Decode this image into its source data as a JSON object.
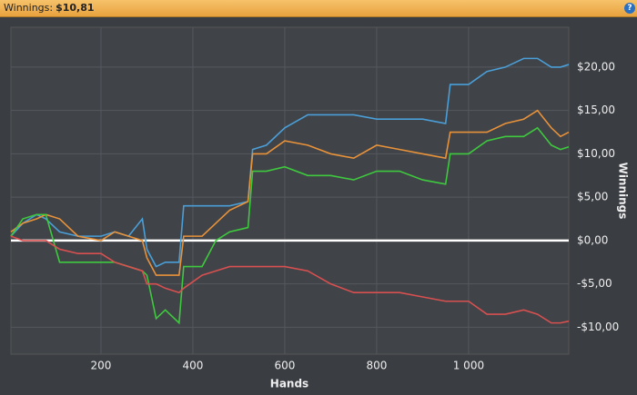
{
  "header": {
    "label": "Winnings:",
    "value": "$10,81",
    "help": "?"
  },
  "chart_data": {
    "type": "line",
    "x_label": "Hands",
    "y_label": "Winnings",
    "x": [
      4,
      30,
      60,
      80,
      110,
      150,
      200,
      230,
      260,
      290,
      300,
      320,
      340,
      370,
      380,
      420,
      450,
      480,
      520,
      530,
      560,
      600,
      650,
      700,
      750,
      800,
      850,
      900,
      950,
      960,
      1000,
      1040,
      1080,
      1120,
      1150,
      1180,
      1200,
      1218
    ],
    "series": [
      {
        "color": "#4a9fd8",
        "values": [
          0.5,
          2,
          3,
          2.5,
          1,
          0.5,
          0.5,
          1,
          0.5,
          2.5,
          -1,
          -3,
          -2.5,
          -2.5,
          4,
          4,
          4,
          4,
          4.5,
          10.5,
          11,
          13,
          14.5,
          14.5,
          14.5,
          14,
          14,
          14,
          13.5,
          18,
          18,
          19.5,
          20,
          21,
          21,
          20,
          20,
          20.3
        ]
      },
      {
        "color": "#e8923a",
        "values": [
          1,
          2,
          2.5,
          3,
          2.5,
          0.5,
          0,
          1,
          0.5,
          0,
          -2,
          -4,
          -4,
          -4,
          0.5,
          0.5,
          2,
          3.5,
          4.5,
          10,
          10,
          11.5,
          11,
          10,
          9.5,
          11,
          10.5,
          10,
          9.5,
          12.5,
          12.5,
          12.5,
          13.5,
          14,
          15,
          13,
          12,
          12.5
        ]
      },
      {
        "color": "#3ec93e",
        "values": [
          0.5,
          2.5,
          3,
          3,
          -2.5,
          -2.5,
          -2.5,
          -2.5,
          -3,
          -3.5,
          -4,
          -9,
          -8,
          -9.5,
          -3,
          -3,
          0,
          1,
          1.5,
          8,
          8,
          8.5,
          7.5,
          7.5,
          7,
          8,
          8,
          7,
          6.5,
          10,
          10,
          11.5,
          12,
          12,
          13,
          11,
          10.5,
          10.8
        ]
      },
      {
        "color": "#d85050",
        "values": [
          0.5,
          0,
          0,
          0,
          -1,
          -1.5,
          -1.5,
          -2.5,
          -3,
          -3.5,
          -5,
          -5,
          -5.5,
          -6,
          -5.5,
          -4,
          -3.5,
          -3,
          -3,
          -3,
          -3,
          -3,
          -3.5,
          -5,
          -6,
          -6,
          -6,
          -6.5,
          -7,
          -7,
          -7,
          -8.5,
          -8.5,
          -8,
          -8.5,
          -9.5,
          -9.5,
          -9.3
        ]
      }
    ],
    "xlim": [
      4,
      1218
    ],
    "ylim": [
      -13.1,
      24.6
    ],
    "xticks": [
      200,
      400,
      600,
      800,
      {
        "value": 1000,
        "label": "1 000"
      }
    ],
    "yticks": [
      {
        "value": -10,
        "label": "-$10,00"
      },
      {
        "value": -5,
        "label": "-$5,00"
      },
      {
        "value": 0,
        "label": "$0,00"
      },
      {
        "value": 5,
        "label": "$5,00"
      },
      {
        "value": 10,
        "label": "$10,00"
      },
      {
        "value": 15,
        "label": "$15,00"
      },
      {
        "value": 20,
        "label": "$20,00"
      }
    ],
    "grid": true
  }
}
